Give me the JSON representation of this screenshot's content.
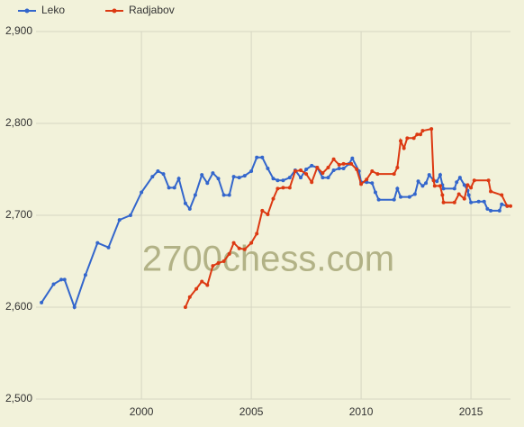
{
  "chart_data": {
    "type": "line",
    "annotation": "2700chess.com",
    "x": null,
    "series": [
      {
        "name": "Leko",
        "color": "#3366cc",
        "x": [
          1995.45,
          1996.0,
          1996.35,
          1996.5,
          1996.95,
          1997.45,
          1998.0,
          1998.5,
          1999.0,
          1999.5,
          2000.0,
          2000.5,
          2000.75,
          2001.0,
          2001.25,
          2001.5,
          2001.7,
          2002.0,
          2002.2,
          2002.45,
          2002.75,
          2003.0,
          2003.25,
          2003.5,
          2003.75,
          2004.0,
          2004.2,
          2004.45,
          2004.7,
          2005.0,
          2005.25,
          2005.5,
          2005.75,
          2006.0,
          2006.2,
          2006.45,
          2006.75,
          2007.0,
          2007.25,
          2007.5,
          2007.75,
          2008.0,
          2008.25,
          2008.5,
          2008.75,
          2009.0,
          2009.2,
          2009.45,
          2009.6,
          2009.9,
          2010.0,
          2010.25,
          2010.5,
          2010.65,
          2010.8,
          2011.5,
          2011.65,
          2011.8,
          2012.2,
          2012.45,
          2012.6,
          2012.8,
          2012.95,
          2013.1,
          2013.3,
          2013.45,
          2013.6,
          2013.7,
          2013.75,
          2014.25,
          2014.35,
          2014.5,
          2014.7,
          2014.85,
          2014.9,
          2015.0,
          2015.35,
          2015.6,
          2015.75,
          2015.9,
          2016.3,
          2016.4,
          2016.65
        ],
        "values": [
          2605,
          2625,
          2630,
          2630,
          2600,
          2635,
          2670,
          2665,
          2695,
          2700,
          2725,
          2742,
          2748,
          2745,
          2730,
          2730,
          2740,
          2713,
          2707,
          2722,
          2744,
          2735,
          2746,
          2740,
          2722,
          2722,
          2742,
          2741,
          2743,
          2748,
          2763,
          2763,
          2751,
          2740,
          2738,
          2738,
          2741,
          2749,
          2741,
          2750,
          2754,
          2752,
          2741,
          2741,
          2749,
          2751,
          2751,
          2756,
          2762,
          2748,
          2736,
          2736,
          2735,
          2725,
          2717,
          2717,
          2729,
          2720,
          2720,
          2723,
          2737,
          2732,
          2735,
          2744,
          2738,
          2737,
          2744,
          2733,
          2729,
          2729,
          2736,
          2741,
          2733,
          2727,
          2722,
          2714,
          2715,
          2715,
          2707,
          2705,
          2705,
          2712,
          2710
        ]
      },
      {
        "name": "Radjabov",
        "color": "#dc3912",
        "x": [
          2002.0,
          2002.2,
          2002.5,
          2002.75,
          2003.0,
          2003.25,
          2003.5,
          2003.75,
          2004.0,
          2004.2,
          2004.45,
          2004.7,
          2005.0,
          2005.25,
          2005.5,
          2005.75,
          2006.0,
          2006.2,
          2006.45,
          2006.75,
          2007.0,
          2007.25,
          2007.5,
          2007.75,
          2008.0,
          2008.25,
          2008.5,
          2008.75,
          2009.0,
          2009.2,
          2009.55,
          2009.8,
          2010.0,
          2010.25,
          2010.5,
          2010.75,
          2011.5,
          2011.65,
          2011.8,
          2011.95,
          2012.1,
          2012.4,
          2012.55,
          2012.7,
          2012.8,
          2013.2,
          2013.3,
          2013.35,
          2013.6,
          2013.7,
          2013.75,
          2014.25,
          2014.45,
          2014.7,
          2014.85,
          2015.0,
          2015.15,
          2015.8,
          2015.9,
          2016.4,
          2016.65,
          2016.8
        ],
        "values": [
          2600,
          2611,
          2620,
          2628,
          2624,
          2645,
          2648,
          2650,
          2658,
          2670,
          2664,
          2663,
          2670,
          2680,
          2705,
          2701,
          2718,
          2729,
          2730,
          2730,
          2748,
          2749,
          2745,
          2736,
          2752,
          2746,
          2752,
          2761,
          2755,
          2756,
          2756,
          2750,
          2734,
          2739,
          2748,
          2745,
          2745,
          2752,
          2781,
          2773,
          2784,
          2784,
          2788,
          2788,
          2792,
          2794,
          2738,
          2732,
          2732,
          2722,
          2714,
          2714,
          2723,
          2718,
          2733,
          2730,
          2738,
          2738,
          2726,
          2722,
          2710,
          2710
        ]
      }
    ],
    "xlim": [
      1995.2,
      2016.8
    ],
    "xticks": [
      2000,
      2005,
      2010,
      2015
    ],
    "ylim": [
      2500,
      2900
    ],
    "yticks": [
      {
        "value": 2500,
        "label": "2,500"
      },
      {
        "value": 2600,
        "label": "2,600"
      },
      {
        "value": 2700,
        "label": "2,700"
      },
      {
        "value": 2800,
        "label": "2,800"
      },
      {
        "value": 2900,
        "label": "2,900"
      }
    ],
    "grid": true,
    "legend": "top-left"
  }
}
